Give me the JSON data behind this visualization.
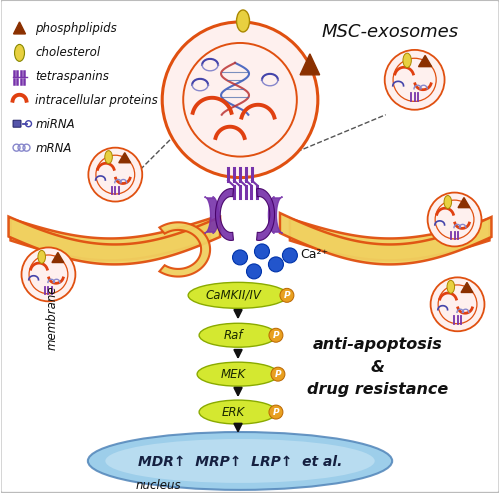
{
  "title": "MSC-exosomes",
  "bg_color": "#FFFFFF",
  "border_color": "#BBBBBB",
  "membrane_orange": "#E05010",
  "membrane_yellow": "#F0D060",
  "exosome_ring": "#E05010",
  "exosome_fill": "#FEF0EE",
  "cascade_yellow": "#D4E830",
  "cascade_edge": "#8AAA00",
  "phospho_orange": "#E8A020",
  "nucleus_blue": "#90C8E8",
  "nucleus_blue2": "#B8DCF0",
  "ca_blue": "#2255CC",
  "arrow_color": "#111111",
  "purple_color": "#7733AA",
  "red_arc": "#E04010",
  "brown_tri": "#8B3000",
  "gold_ellipse": "#E8D040",
  "mirna_blue": "#4444AA",
  "mrna_blue": "#8888CC",
  "nucleus_label": "MDR↑  MRP↑  LRP↑  et al.",
  "outcome_text": "anti-apoptosis\n&\ndrug resistance",
  "ca2_label": "Ca²⁺",
  "nucleus_text": "nucleus",
  "membrane_label": "membrane"
}
